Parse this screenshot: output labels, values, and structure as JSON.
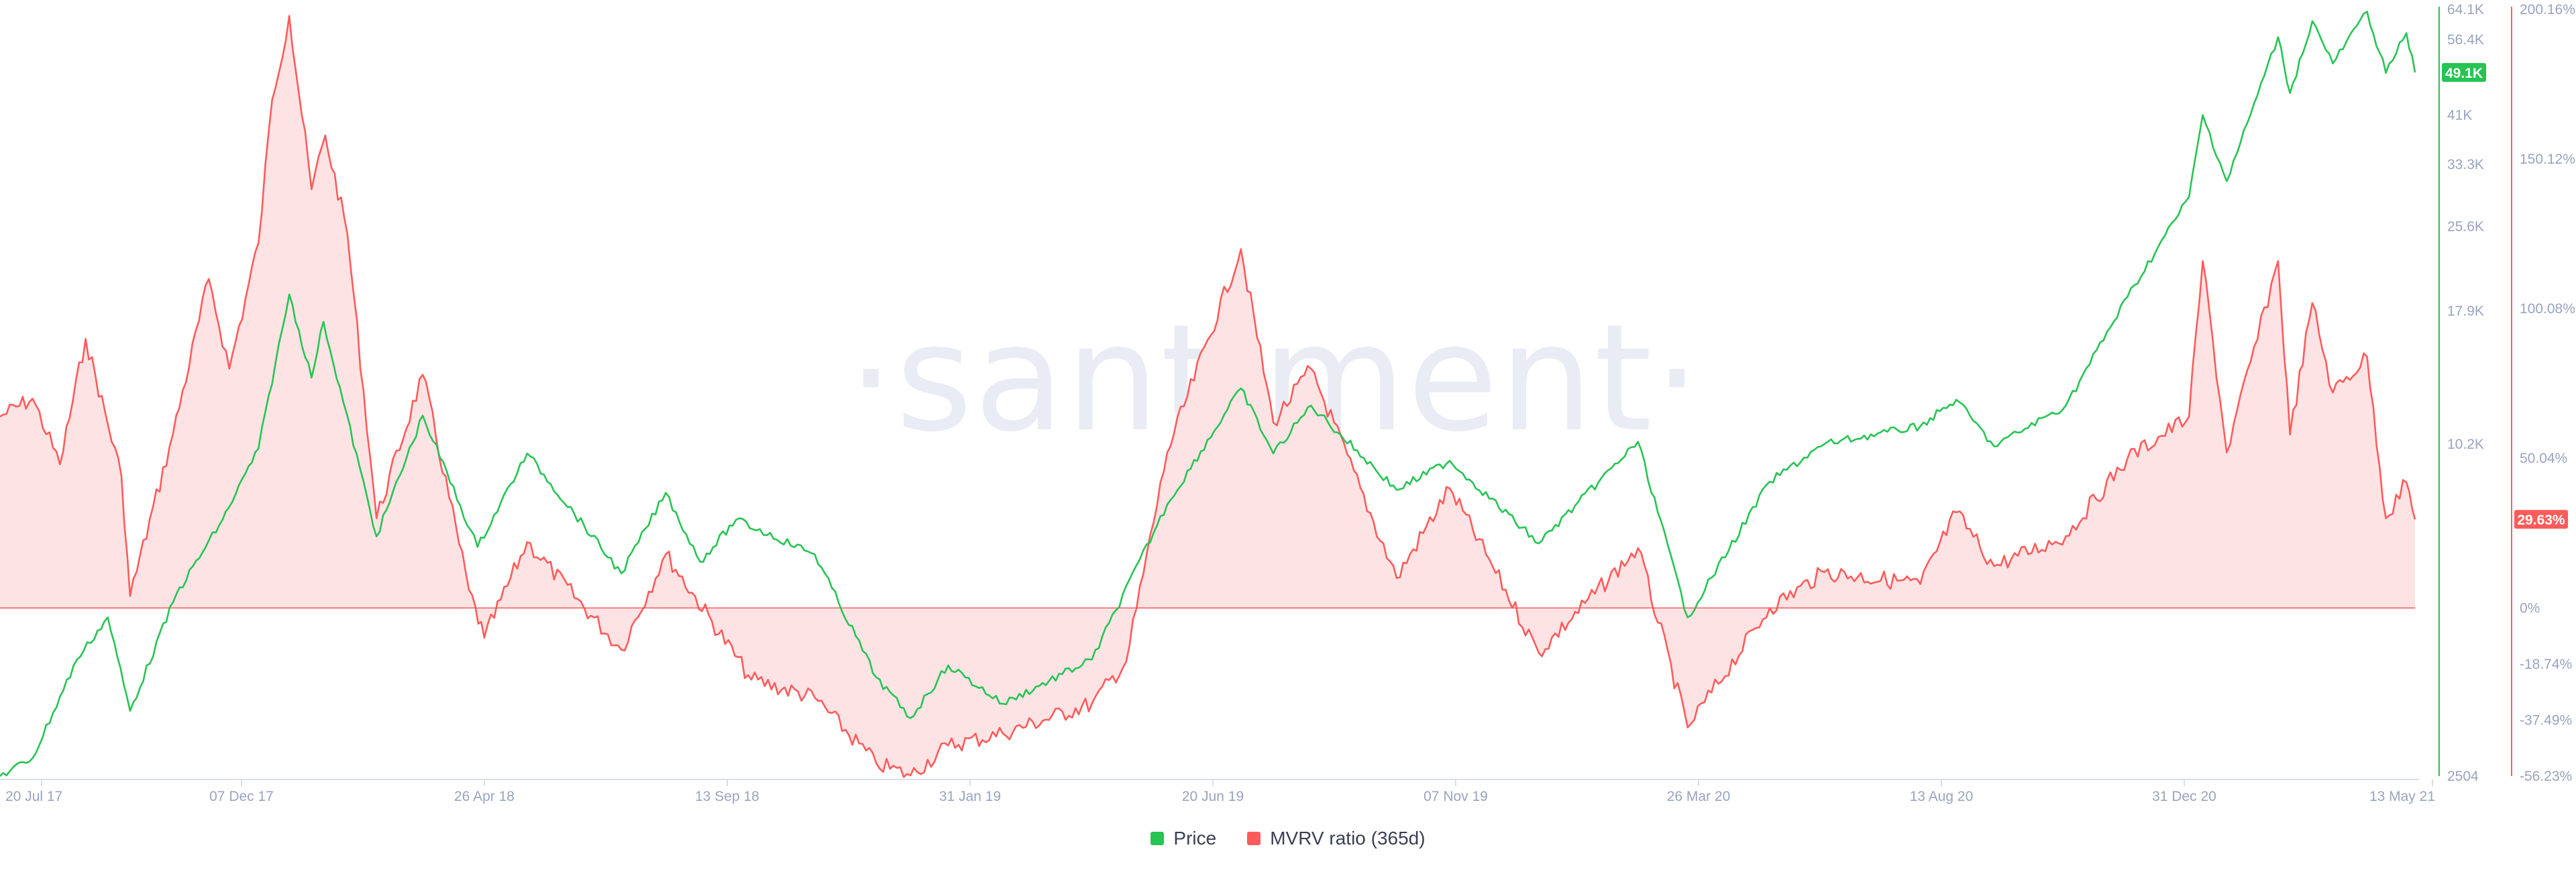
{
  "chart_data": {
    "type": "line",
    "watermark": "·santiment·",
    "x_ticks": [
      "20 Jul 17",
      "07 Dec 17",
      "26 Apr 18",
      "13 Sep 18",
      "31 Jan 19",
      "20 Jun 19",
      "07 Nov 19",
      "26 Mar 20",
      "13 Aug 20",
      "31 Dec 20",
      "13 May 21"
    ],
    "series": [
      {
        "name": "Price",
        "color": "#26c453",
        "axis": "price",
        "last_value_label": "49.1K",
        "points": [
          [
            "2017-07-01",
            2504
          ],
          [
            "2017-07-20",
            2700
          ],
          [
            "2017-08-15",
            4100
          ],
          [
            "2017-09-02",
            4900
          ],
          [
            "2017-09-15",
            3300
          ],
          [
            "2017-10-12",
            5400
          ],
          [
            "2017-11-08",
            7400
          ],
          [
            "2017-11-29",
            10000
          ],
          [
            "2017-12-17",
            19200
          ],
          [
            "2017-12-30",
            13500
          ],
          [
            "2018-01-06",
            17100
          ],
          [
            "2018-02-06",
            6900
          ],
          [
            "2018-03-05",
            11500
          ],
          [
            "2018-04-06",
            6600
          ],
          [
            "2018-05-05",
            9800
          ],
          [
            "2018-06-29",
            5900
          ],
          [
            "2018-07-25",
            8300
          ],
          [
            "2018-08-14",
            6200
          ],
          [
            "2018-09-04",
            7400
          ],
          [
            "2018-10-20",
            6400
          ],
          [
            "2018-11-25",
            3800
          ],
          [
            "2018-12-15",
            3200
          ],
          [
            "2019-01-06",
            4000
          ],
          [
            "2019-02-07",
            3400
          ],
          [
            "2019-03-31",
            4100
          ],
          [
            "2019-05-14",
            7900
          ],
          [
            "2019-06-26",
            12900
          ],
          [
            "2019-07-15",
            9800
          ],
          [
            "2019-08-06",
            12000
          ],
          [
            "2019-09-25",
            8400
          ],
          [
            "2019-10-26",
            9500
          ],
          [
            "2019-12-17",
            6700
          ],
          [
            "2020-02-13",
            10300
          ],
          [
            "2020-03-13",
            4900
          ],
          [
            "2020-04-30",
            8700
          ],
          [
            "2020-06-01",
            10200
          ],
          [
            "2020-07-27",
            11000
          ],
          [
            "2020-08-17",
            12300
          ],
          [
            "2020-09-08",
            10100
          ],
          [
            "2020-10-20",
            12000
          ],
          [
            "2020-11-25",
            19000
          ],
          [
            "2020-12-31",
            29000
          ],
          [
            "2021-01-08",
            41000
          ],
          [
            "2021-01-22",
            31000
          ],
          [
            "2021-02-21",
            57000
          ],
          [
            "2021-02-28",
            45000
          ],
          [
            "2021-03-13",
            61000
          ],
          [
            "2021-03-25",
            51000
          ],
          [
            "2021-04-14",
            63500
          ],
          [
            "2021-04-25",
            49000
          ],
          [
            "2021-05-07",
            58000
          ],
          [
            "2021-05-12",
            49100
          ]
        ]
      },
      {
        "name": "MVRV ratio (365d)",
        "color": "#ff5b5b",
        "fill": "#fde3e4",
        "axis": "mvrv",
        "last_value_label": "29.63%",
        "points": [
          [
            "2017-07-01",
            64
          ],
          [
            "2017-07-20",
            70
          ],
          [
            "2017-08-05",
            48
          ],
          [
            "2017-08-20",
            90
          ],
          [
            "2017-09-10",
            44
          ],
          [
            "2017-09-15",
            4
          ],
          [
            "2017-10-10",
            58
          ],
          [
            "2017-10-31",
            110
          ],
          [
            "2017-11-12",
            80
          ],
          [
            "2017-11-29",
            122
          ],
          [
            "2017-12-07",
            170
          ],
          [
            "2017-12-17",
            198
          ],
          [
            "2017-12-30",
            140
          ],
          [
            "2018-01-07",
            158
          ],
          [
            "2018-01-20",
            125
          ],
          [
            "2018-02-06",
            30
          ],
          [
            "2018-03-05",
            78
          ],
          [
            "2018-04-01",
            6
          ],
          [
            "2018-04-10",
            -10
          ],
          [
            "2018-05-05",
            22
          ],
          [
            "2018-06-29",
            -14
          ],
          [
            "2018-07-25",
            18
          ],
          [
            "2018-09-13",
            -24
          ],
          [
            "2018-10-20",
            -30
          ],
          [
            "2018-11-25",
            -52
          ],
          [
            "2018-12-15",
            -56
          ],
          [
            "2019-01-06",
            -46
          ],
          [
            "2019-02-07",
            -42
          ],
          [
            "2019-03-31",
            -32
          ],
          [
            "2019-04-20",
            -18
          ],
          [
            "2019-05-14",
            52
          ],
          [
            "2019-06-26",
            120
          ],
          [
            "2019-07-15",
            62
          ],
          [
            "2019-08-06",
            80
          ],
          [
            "2019-09-25",
            10
          ],
          [
            "2019-10-26",
            40
          ],
          [
            "2019-11-20",
            14
          ],
          [
            "2019-12-17",
            -15
          ],
          [
            "2020-02-13",
            20
          ],
          [
            "2020-03-13",
            -40
          ],
          [
            "2020-04-30",
            0
          ],
          [
            "2020-06-01",
            12
          ],
          [
            "2020-07-27",
            8
          ],
          [
            "2020-08-17",
            32
          ],
          [
            "2020-09-08",
            14
          ],
          [
            "2020-10-20",
            24
          ],
          [
            "2020-11-25",
            50
          ],
          [
            "2020-12-31",
            64
          ],
          [
            "2021-01-08",
            116
          ],
          [
            "2021-01-22",
            52
          ],
          [
            "2021-02-21",
            116
          ],
          [
            "2021-02-28",
            58
          ],
          [
            "2021-03-13",
            102
          ],
          [
            "2021-03-25",
            72
          ],
          [
            "2021-04-14",
            84
          ],
          [
            "2021-04-25",
            30
          ],
          [
            "2021-05-07",
            42
          ],
          [
            "2021-05-12",
            29.63
          ]
        ]
      }
    ],
    "axes": {
      "price": {
        "position": "right-inner",
        "color": "#26c453",
        "scale": "log",
        "ylim": [
          2504,
          64100
        ],
        "ticks": [
          {
            "value": 64100,
            "label": "64.1K"
          },
          {
            "value": 56400,
            "label": "56.4K"
          },
          {
            "value": 41000,
            "label": "41K"
          },
          {
            "value": 33300,
            "label": "33.3K"
          },
          {
            "value": 25600,
            "label": "25.6K"
          },
          {
            "value": 17900,
            "label": "17.9K"
          },
          {
            "value": 10200,
            "label": "10.2K"
          },
          {
            "value": 2504,
            "label": "2504"
          }
        ]
      },
      "mvrv": {
        "position": "right-outer",
        "color": "#ff5b5b",
        "scale": "linear",
        "ylim": [
          -56.23,
          200.16
        ],
        "ticks": [
          {
            "value": 200.16,
            "label": "200.16%"
          },
          {
            "value": 150.12,
            "label": "150.12%"
          },
          {
            "value": 100.08,
            "label": "100.08%"
          },
          {
            "value": 50.04,
            "label": "50.04%"
          },
          {
            "value": 0,
            "label": "0%"
          },
          {
            "value": -18.74,
            "label": "-18.74%"
          },
          {
            "value": -37.49,
            "label": "-37.49%"
          },
          {
            "value": -56.23,
            "label": "-56.23%"
          }
        ]
      }
    },
    "x_range": [
      "2017-07-01",
      "2021-05-12"
    ],
    "grid": false,
    "legend_position": "bottom-center"
  },
  "legend": {
    "items": [
      {
        "label": "Price",
        "color": "#26c453"
      },
      {
        "label": "MVRV ratio (365d)",
        "color": "#ff5b5b"
      }
    ]
  }
}
